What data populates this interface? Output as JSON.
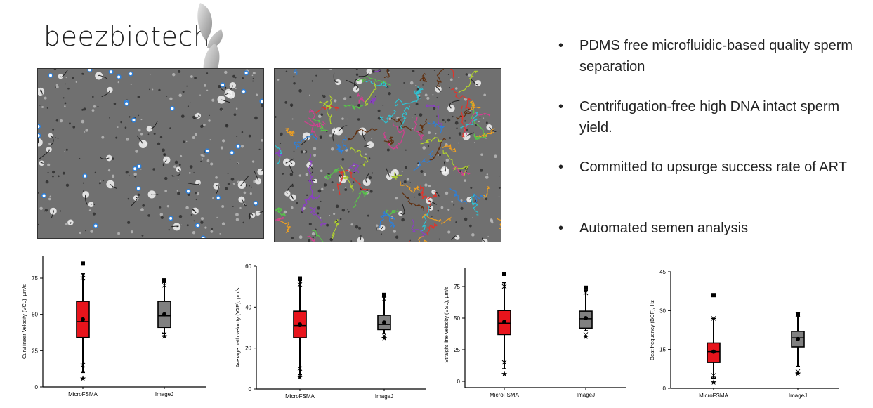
{
  "logo": {
    "text": "beezbiotech"
  },
  "images": [
    {
      "name": "sperm-detection-image"
    },
    {
      "name": "sperm-tracking-image"
    }
  ],
  "bullets": [
    "PDMS free microfluidic-based quality sperm separation",
    "Centrifugation-free high DNA intact sperm yield.",
    "Committed to upsurge success rate of ART",
    "Automated semen analysis"
  ],
  "colors": {
    "microfsma": "#e8141c",
    "imagej": "#808080"
  },
  "chart_data": [
    {
      "type": "box",
      "ylabel": "Curvilinear Velocity (VCL), µm/s",
      "ylim": [
        0,
        90
      ],
      "yticks": [
        "0",
        "25",
        "50",
        "75"
      ],
      "ytick_values": [
        0,
        25,
        50,
        75
      ],
      "categories": [
        "MicroFSMA",
        "ImageJ"
      ],
      "boxes": [
        {
          "min": 6,
          "p1": 15,
          "whisker_low": 10,
          "q1": 34,
          "median": 45,
          "mean": 46.5,
          "q3": 59,
          "whisker_high": 78,
          "p99": 75,
          "max": 85
        },
        {
          "min": 35,
          "p1": 36,
          "whisker_low": 37,
          "q1": 41,
          "median": 49,
          "mean": 50,
          "q3": 59,
          "whisker_high": 72,
          "p99": 70,
          "max": 73.5
        }
      ]
    },
    {
      "type": "box",
      "ylabel": "Average path velocity (VAP), µm/s",
      "ylim": [
        0,
        60
      ],
      "yticks": [
        "0",
        "20",
        "40",
        "60"
      ],
      "ytick_values": [
        0,
        20,
        40,
        60
      ],
      "categories": [
        "MicroFSMA",
        "ImageJ"
      ],
      "boxes": [
        {
          "min": 6,
          "p1": 10,
          "whisker_low": 7,
          "q1": 25,
          "median": 31,
          "mean": 31.5,
          "q3": 38,
          "whisker_high": 53,
          "p99": 51,
          "max": 54
        },
        {
          "min": 25,
          "p1": 26,
          "whisker_low": 27,
          "q1": 29,
          "median": 31.5,
          "mean": 32.5,
          "q3": 36,
          "whisker_high": 45,
          "p99": 44,
          "max": 46
        }
      ]
    },
    {
      "type": "box",
      "ylabel": "Straight line velocity (VSL), µm/s",
      "ylim": [
        0,
        90
      ],
      "yticks": [
        "0",
        "25",
        "50",
        "75"
      ],
      "ytick_values": [
        0,
        25,
        50,
        75
      ],
      "categories": [
        "MicroFSMA",
        "ImageJ"
      ],
      "boxes": [
        {
          "min": 6,
          "p1": 15,
          "whisker_low": 10,
          "q1": 37,
          "median": 46,
          "mean": 47,
          "q3": 56,
          "whisker_high": 78,
          "p99": 75,
          "max": 85
        },
        {
          "min": 35.5,
          "p1": 37,
          "whisker_low": 40,
          "q1": 42,
          "median": 49.5,
          "mean": 50,
          "q3": 55.5,
          "whisker_high": 72,
          "p99": 70,
          "max": 74
        }
      ]
    },
    {
      "type": "box",
      "ylabel": "Beat frequency (BCF), Hz",
      "ylim": [
        0,
        45
      ],
      "yticks": [
        "0",
        "15",
        "30",
        "45"
      ],
      "ytick_values": [
        0,
        15,
        30,
        45
      ],
      "categories": [
        "MicroFSMA",
        "ImageJ"
      ],
      "boxes": [
        {
          "min": 2.5,
          "p1": 5,
          "whisker_low": 4,
          "q1": 10,
          "median": 14.2,
          "mean": 14.2,
          "q3": 17.5,
          "whisker_high": 27,
          "p99": 27,
          "max": 36
        },
        {
          "min": 5.8,
          "p1": 6.5,
          "whisker_low": 8.5,
          "q1": 16,
          "median": 19.5,
          "mean": 19,
          "q3": 22,
          "whisker_high": 28.5,
          "p99": 28.5,
          "max": 28.5
        }
      ]
    }
  ]
}
